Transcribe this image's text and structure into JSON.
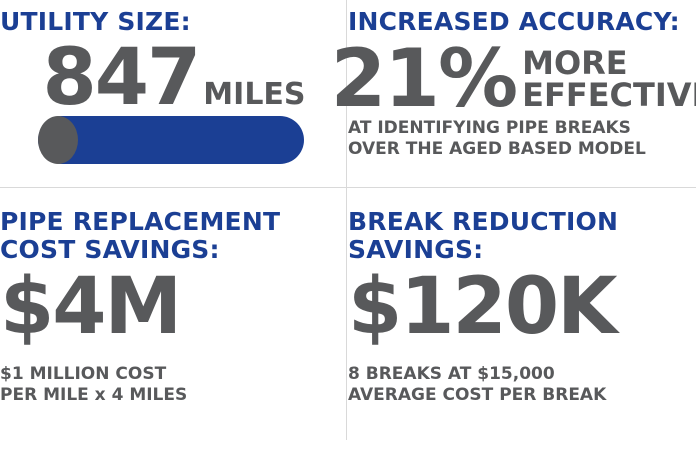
{
  "colors": {
    "accent_blue": "#1b3f94",
    "text_grey": "#58595b",
    "divider": "#d9d9d9"
  },
  "utility_size": {
    "heading": "UTILITY SIZE:",
    "number": "847",
    "unit": "MILES",
    "icon": "pipe-icon"
  },
  "increased_accuracy": {
    "heading": "INCREASED ACCURACY:",
    "number": "21%",
    "more_line1": "MORE",
    "more_line2": "EFFECTIVE",
    "sub_line1": "AT IDENTIFYING PIPE BREAKS",
    "sub_line2": "OVER THE AGED BASED MODEL"
  },
  "pipe_replacement": {
    "heading_line1": "PIPE REPLACEMENT",
    "heading_line2": "COST SAVINGS:",
    "number": "$4M",
    "sub_line1": "$1 MILLION COST",
    "sub_line2": "PER MILE x 4 MILES"
  },
  "break_reduction": {
    "heading_line1": "BREAK REDUCTION",
    "heading_line2": "SAVINGS:",
    "number": "$120K",
    "sub_line1": "8 BREAKS AT $15,000",
    "sub_line2": "AVERAGE COST PER BREAK"
  }
}
